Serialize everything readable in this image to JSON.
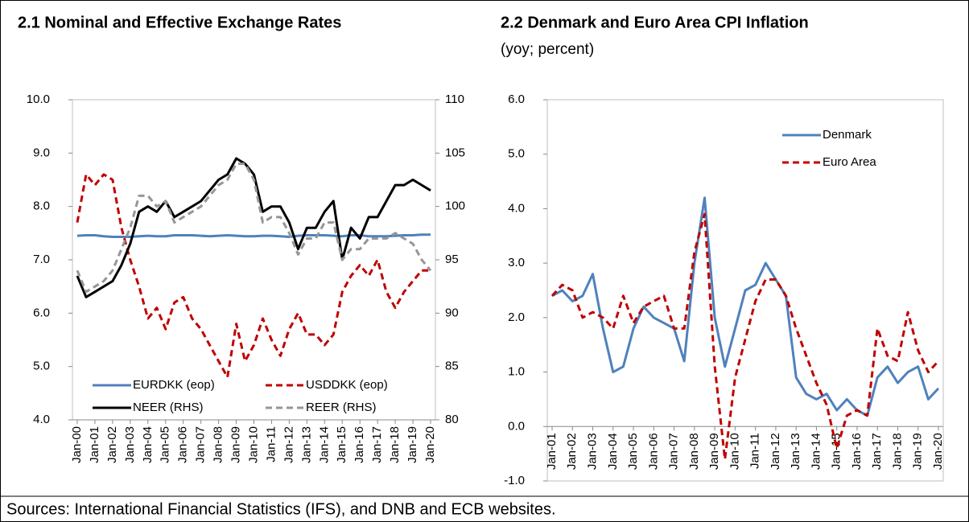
{
  "chart_data": [
    {
      "type": "line",
      "title": "2.1 Nominal and Effective Exchange Rates",
      "categories": [
        "Jan-00",
        null,
        "Jan-01",
        null,
        "Jan-02",
        null,
        "Jan-03",
        null,
        "Jan-04",
        null,
        "Jan-05",
        null,
        "Jan-06",
        null,
        "Jan-07",
        null,
        "Jan-08",
        null,
        "Jan-09",
        null,
        "Jan-10",
        null,
        "Jan-11",
        null,
        "Jan-12",
        null,
        "Jan-13",
        null,
        "Jan-14",
        null,
        "Jan-15",
        null,
        "Jan-16",
        null,
        "Jan-17",
        null,
        "Jan-18",
        null,
        "Jan-19",
        null,
        "Jan-20"
      ],
      "series": [
        {
          "name": "EURDKK (eop)",
          "color": "#4f81bd",
          "style": "solid",
          "values": [
            7.45,
            7.46,
            7.46,
            7.44,
            7.43,
            7.43,
            7.43,
            7.44,
            7.45,
            7.44,
            7.44,
            7.46,
            7.46,
            7.46,
            7.45,
            7.44,
            7.45,
            7.46,
            7.45,
            7.44,
            7.44,
            7.45,
            7.45,
            7.44,
            7.43,
            7.45,
            7.46,
            7.46,
            7.46,
            7.45,
            7.44,
            7.46,
            7.46,
            7.44,
            7.44,
            7.44,
            7.45,
            7.46,
            7.46,
            7.47,
            7.47
          ]
        },
        {
          "name": "USDDKK (eop)",
          "color": "#c00000",
          "style": "dashed",
          "values": [
            7.7,
            8.6,
            8.4,
            8.6,
            8.5,
            7.6,
            7.0,
            6.5,
            5.9,
            6.1,
            5.7,
            6.2,
            6.3,
            5.9,
            5.7,
            5.4,
            5.1,
            4.8,
            5.8,
            5.1,
            5.4,
            5.9,
            5.5,
            5.2,
            5.7,
            6.0,
            5.6,
            5.6,
            5.4,
            5.6,
            6.4,
            6.7,
            6.9,
            6.7,
            7.0,
            6.4,
            6.1,
            6.4,
            6.6,
            6.8,
            6.8
          ]
        },
        {
          "name": "NEER (RHS)",
          "color": "#000000",
          "style": "solid",
          "axis": "y2",
          "values": [
            93.5,
            91.5,
            92,
            92.5,
            93,
            94.5,
            96.5,
            99.5,
            100,
            99.5,
            100.5,
            99,
            99.5,
            100,
            100.5,
            101.5,
            102.5,
            103,
            104.5,
            104,
            103,
            99.5,
            100,
            100,
            98.5,
            96,
            98,
            98,
            99.5,
            100.5,
            95,
            98,
            97,
            99,
            99,
            100.5,
            102,
            102,
            102.5,
            102,
            101.5
          ]
        },
        {
          "name": "REER (RHS)",
          "color": "#969696",
          "style": "dashed",
          "axis": "y2",
          "values": [
            94,
            92,
            92.5,
            93,
            94,
            96,
            98,
            101,
            101,
            100,
            100.5,
            98.5,
            99,
            99.5,
            100,
            101,
            102,
            102.5,
            104,
            104,
            102.5,
            98.5,
            99,
            99,
            97.5,
            95.5,
            97,
            97,
            98.5,
            98.5,
            95,
            96,
            96,
            97,
            97,
            97,
            97.5,
            97,
            96.5,
            95,
            94
          ]
        }
      ],
      "ylim": [
        4,
        10
      ],
      "yticks": [
        {
          "value": 4,
          "label": "4.0"
        },
        {
          "value": 5,
          "label": "5.0"
        },
        {
          "value": 6,
          "label": "6.0"
        },
        {
          "value": 7,
          "label": "7.0"
        },
        {
          "value": 8,
          "label": "8.0"
        },
        {
          "value": 9,
          "label": "9.0"
        },
        {
          "value": 10,
          "label": "10.0"
        }
      ],
      "y2lim": [
        80,
        110
      ],
      "y2ticks": [
        80,
        85,
        90,
        95,
        100,
        105,
        110
      ],
      "grid": false,
      "legend": "bottom"
    },
    {
      "type": "line",
      "title": "2.2 Denmark and Euro Area CPI Inflation",
      "subtitle": "(yoy; percent)",
      "categories": [
        "Jan-01",
        null,
        "Jan-02",
        null,
        "Jan-03",
        null,
        "Jan-04",
        null,
        "Jan-05",
        null,
        "Jan-06",
        null,
        "Jan-07",
        null,
        "Jan-08",
        null,
        "Jan-09",
        null,
        "Jan-10",
        null,
        "Jan-11",
        null,
        "Jan-12",
        null,
        "Jan-13",
        null,
        "Jan-14",
        null,
        "Jan-15",
        null,
        "Jan-16",
        null,
        "Jan-17",
        null,
        "Jan-18",
        null,
        "Jan-19",
        null,
        "Jan-20"
      ],
      "series": [
        {
          "name": "Denmark",
          "color": "#4f81bd",
          "style": "solid",
          "values": [
            2.4,
            2.5,
            2.3,
            2.4,
            2.8,
            1.8,
            1.0,
            1.1,
            1.8,
            2.2,
            2.0,
            1.9,
            1.8,
            1.2,
            3.0,
            4.2,
            2.0,
            1.1,
            1.8,
            2.5,
            2.6,
            3.0,
            2.7,
            2.4,
            0.9,
            0.6,
            0.5,
            0.6,
            0.3,
            0.5,
            0.3,
            0.2,
            0.9,
            1.1,
            0.8,
            1.0,
            1.1,
            0.5,
            0.7
          ]
        },
        {
          "name": "Euro Area",
          "color": "#c00000",
          "style": "dashed",
          "values": [
            2.4,
            2.6,
            2.5,
            2.0,
            2.1,
            2.0,
            1.8,
            2.4,
            1.9,
            2.2,
            2.3,
            2.4,
            1.8,
            1.8,
            3.2,
            3.9,
            1.1,
            -0.6,
            0.9,
            1.6,
            2.3,
            2.7,
            2.7,
            2.4,
            1.8,
            1.3,
            0.8,
            0.4,
            -0.4,
            0.2,
            0.3,
            0.2,
            1.8,
            1.3,
            1.2,
            2.1,
            1.4,
            1.0,
            1.2
          ]
        }
      ],
      "ylim": [
        -1,
        6
      ],
      "yticks": [
        {
          "value": -1,
          "label": "-1.0"
        },
        {
          "value": 0,
          "label": "0.0"
        },
        {
          "value": 1,
          "label": "1.0"
        },
        {
          "value": 2,
          "label": "2.0"
        },
        {
          "value": 3,
          "label": "3.0"
        },
        {
          "value": 4,
          "label": "4.0"
        },
        {
          "value": 5,
          "label": "5.0"
        },
        {
          "value": 6,
          "label": "6.0"
        }
      ],
      "grid": false,
      "legend": "upper right"
    }
  ],
  "source": "Sources: International Financial Statistics (IFS), and DNB and ECB websites."
}
